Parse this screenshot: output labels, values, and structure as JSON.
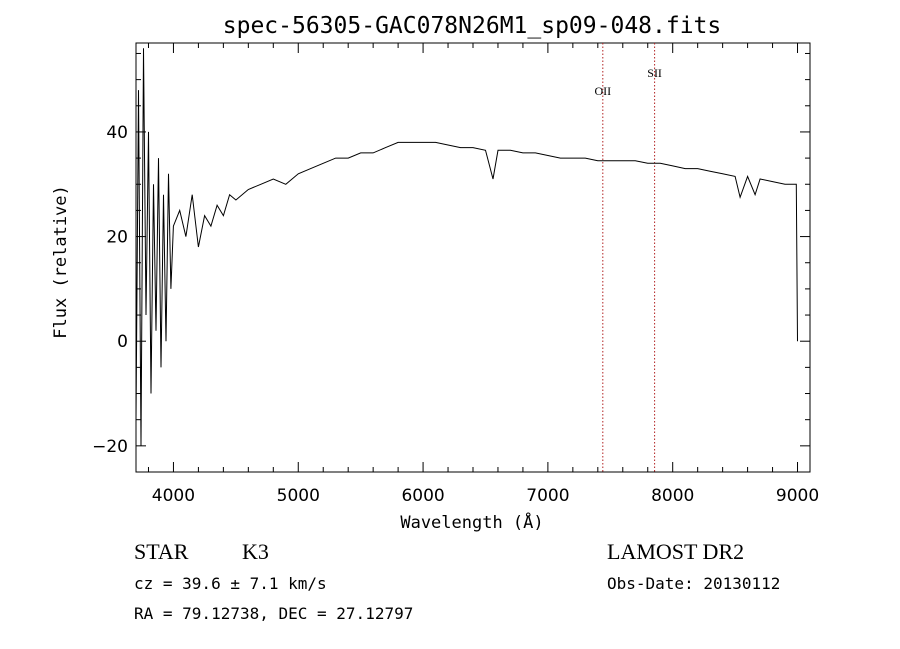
{
  "chart_data": {
    "type": "line",
    "title": "spec-56305-GAC078N26M1_sp09-048.fits",
    "xlabel": "Wavelength (Å)",
    "ylabel": "Flux (relative)",
    "xlim": [
      3700,
      9100
    ],
    "ylim": [
      -25,
      57
    ],
    "xticks": [
      4000,
      5000,
      6000,
      7000,
      8000,
      9000
    ],
    "yticks": [
      -20,
      0,
      20,
      40
    ],
    "grid": false,
    "series": [
      {
        "x": [
          3700,
          3720,
          3740,
          3760,
          3780,
          3800,
          3820,
          3840,
          3860,
          3880,
          3900,
          3920,
          3940,
          3960,
          3980,
          4000,
          4050,
          4100,
          4150,
          4200,
          4250,
          4300,
          4350,
          4400,
          4450,
          4500,
          4600,
          4700,
          4800,
          4900,
          5000,
          5100,
          5200,
          5300,
          5400,
          5500,
          5600,
          5700,
          5800,
          5900,
          6000,
          6100,
          6200,
          6300,
          6400,
          6500,
          6560,
          6600,
          6700,
          6800,
          6900,
          7000,
          7100,
          7200,
          7300,
          7400,
          7500,
          7600,
          7700,
          7800,
          7900,
          8000,
          8100,
          8200,
          8300,
          8400,
          8500,
          8540,
          8600,
          8660,
          8700,
          8800,
          8900,
          8950,
          8990,
          9000
        ],
        "y": [
          -15,
          48,
          -20,
          56,
          5,
          40,
          -10,
          30,
          2,
          35,
          -5,
          28,
          0,
          32,
          10,
          22,
          25,
          20,
          28,
          18,
          24,
          22,
          26,
          24,
          28,
          27,
          29,
          30,
          31,
          30,
          32,
          33,
          34,
          35,
          35,
          36,
          36,
          37,
          38,
          38,
          38,
          38,
          37.5,
          37,
          37,
          36.5,
          31,
          36.5,
          36.5,
          36,
          36,
          35.5,
          35,
          35,
          35,
          34.5,
          34.5,
          34.5,
          34.5,
          34,
          34,
          33.5,
          33,
          33,
          32.5,
          32,
          31.5,
          27.5,
          31.5,
          28,
          31,
          30.5,
          30,
          30,
          30,
          0
        ]
      }
    ],
    "emission_lines": [
      {
        "label": "OII",
        "x": 7440
      },
      {
        "label": "SII",
        "x": 7855
      }
    ]
  },
  "info": {
    "object_class": "STAR",
    "subclass": "K3",
    "survey": "LAMOST DR2",
    "cz": "cz = 39.6 ± 7.1 km/s",
    "obs_date": "Obs-Date: 20130112",
    "coords": "RA =  79.12738, DEC =  27.12797"
  },
  "colors": {
    "spectrum": "#000000",
    "emission_line": "#b22222"
  }
}
